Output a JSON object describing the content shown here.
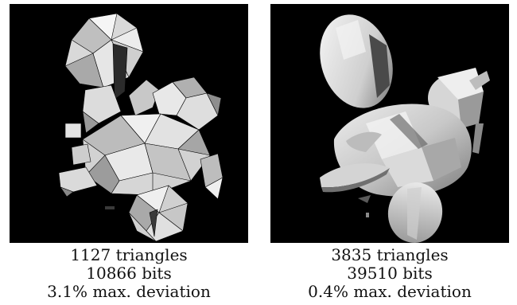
{
  "figures": [
    {
      "triangles": "1127 triangles",
      "bits": "10866 bits",
      "deviation": "3.1% max. deviation"
    },
    {
      "triangles": "3835 triangles",
      "bits": "39510 bits",
      "deviation": "0.4% max. deviation"
    }
  ],
  "colors": {
    "background": "#000000",
    "mesh_light": "#f2f2f2",
    "mesh_mid": "#bdbdbd",
    "mesh_dark": "#6e6e6e"
  }
}
